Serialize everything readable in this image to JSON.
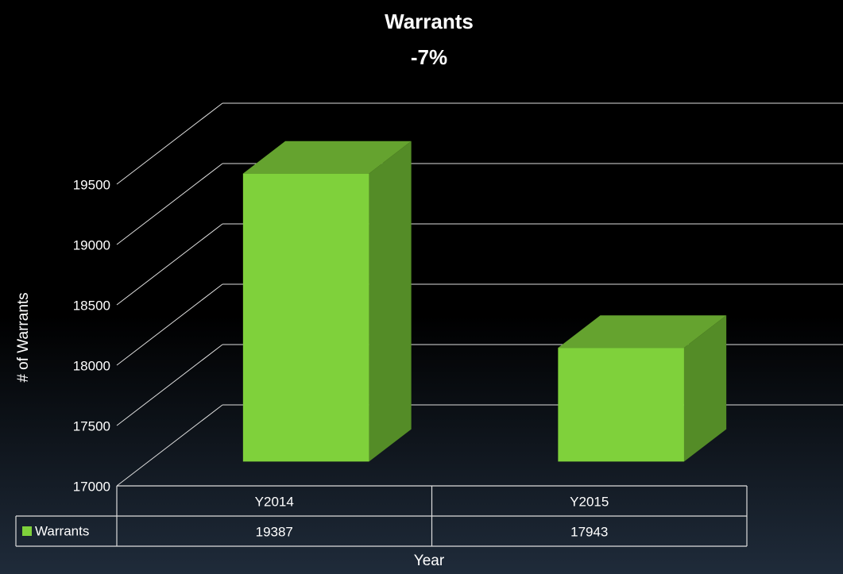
{
  "chart_data": {
    "type": "bar3d",
    "title": "Warrants",
    "subtitle": "-7%",
    "categories": [
      "Y2014",
      "Y2015"
    ],
    "series": [
      {
        "name": "Warrants",
        "color": "#7fd13b",
        "values": [
          19387,
          17943
        ]
      }
    ],
    "ylim": [
      17000,
      19500
    ],
    "yticks": [
      17000,
      17500,
      18000,
      18500,
      19000,
      19500
    ],
    "ylabel": "# of Warrants",
    "xlabel": "Year",
    "grid": true,
    "data_table": true
  }
}
